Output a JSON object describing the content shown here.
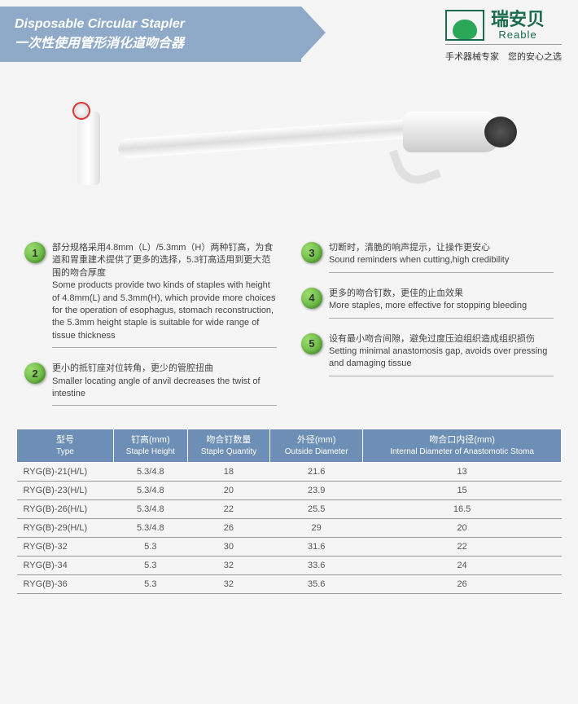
{
  "header": {
    "title_en": "Disposable Circular Stapler",
    "title_cn": "一次性使用管形消化道吻合器",
    "brand_cn": "瑞安贝",
    "brand_en": "Reable",
    "tagline": "手术器械专家　您的安心之选"
  },
  "features": [
    {
      "num": "1",
      "cn": "部分规格采用4.8mm（L）/5.3mm（H）两种钉高，为食道和胃重建术提供了更多的选择，5.3钉高适用到更大范围的吻合厚度",
      "en": "Some products provide two kinds of staples with height of 4.8mm(L) and 5.3mm(H), which provide more choices for the operation of esophagus, stomach reconstruction, the 5.3mm height staple is suitable for wide range of tissue thickness"
    },
    {
      "num": "2",
      "cn": "更小的抵钉座对位转角，更少的管腔扭曲",
      "en": "Smaller locating angle of anvil decreases the twist of intestine"
    },
    {
      "num": "3",
      "cn": "切断时，清脆的响声提示，让操作更安心",
      "en": "Sound reminders when cutting,high credibility"
    },
    {
      "num": "4",
      "cn": "更多的吻合钉数，更佳的止血效果",
      "en": "More staples, more effective for stopping bleeding"
    },
    {
      "num": "5",
      "cn": "设有最小吻合间隙，避免过度压迫组织造成组织损伤",
      "en": "Setting minimal anastomosis gap, avoids over pressing and damaging tissue"
    }
  ],
  "table": {
    "headers": [
      {
        "cn": "型号",
        "en": "Type"
      },
      {
        "cn": "钉高(mm)",
        "en": "Staple Height"
      },
      {
        "cn": "吻合钉数量",
        "en": "Staple Quantity"
      },
      {
        "cn": "外径(mm)",
        "en": "Outside Diameter"
      },
      {
        "cn": "吻合口内径(mm)",
        "en": "Internal Diameter of Anastomotic Stoma"
      }
    ],
    "rows": [
      [
        "RYG(B)-21(H/L)",
        "5.3/4.8",
        "18",
        "21.6",
        "13"
      ],
      [
        "RYG(B)-23(H/L)",
        "5.3/4.8",
        "20",
        "23.9",
        "15"
      ],
      [
        "RYG(B)-26(H/L)",
        "5.3/4.8",
        "22",
        "25.5",
        "16.5"
      ],
      [
        "RYG(B)-29(H/L)",
        "5.3/4.8",
        "26",
        "29",
        "20"
      ],
      [
        "RYG(B)-32",
        "5.3",
        "30",
        "31.6",
        "22"
      ],
      [
        "RYG(B)-34",
        "5.3",
        "32",
        "33.6",
        "24"
      ],
      [
        "RYG(B)-36",
        "5.3",
        "32",
        "35.6",
        "26"
      ]
    ]
  },
  "colors": {
    "banner_bg": "#8fa9c9",
    "table_header_bg": "#6d8fb5",
    "accent_green": "#4fa82e",
    "brand_green": "#1a6b4d"
  }
}
